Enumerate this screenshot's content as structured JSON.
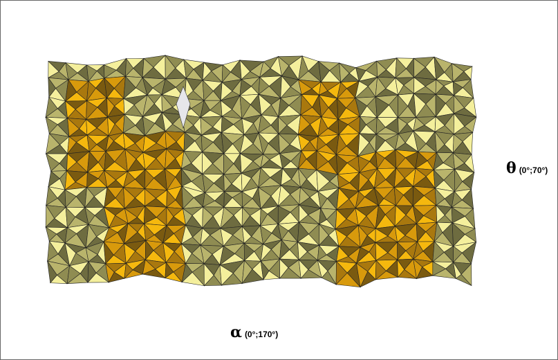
{
  "labels": {
    "theta": {
      "symbol": "θ",
      "range": "(0°;70°)"
    },
    "alpha": {
      "symbol": "α",
      "range": "(0°;170°)"
    }
  }
}
